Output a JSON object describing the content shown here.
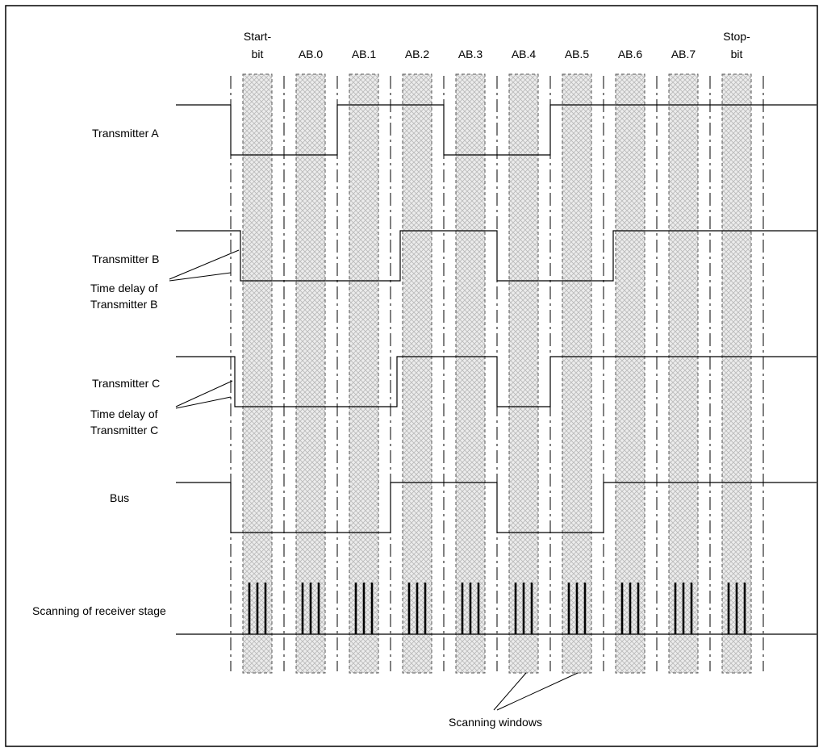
{
  "columns": [
    "Start-\nbit",
    "AB.0",
    "AB.1",
    "AB.2",
    "AB.3",
    "AB.4",
    "AB.5",
    "AB.6",
    "AB.7",
    "Stop-\nbit"
  ],
  "signals": [
    {
      "id": "transmitter-a",
      "label": "Transmitter A",
      "levels": [
        1,
        0,
        0,
        1,
        1,
        0,
        0,
        1,
        1,
        1,
        1
      ]
    },
    {
      "id": "transmitter-b",
      "label": "Transmitter B",
      "levels": [
        1,
        0,
        0,
        0,
        1,
        1,
        0,
        0,
        1,
        1,
        1
      ]
    },
    {
      "id": "transmitter-c",
      "label": "Transmitter C",
      "levels": [
        1,
        0,
        0,
        0,
        1,
        1,
        0,
        1,
        1,
        1,
        1
      ]
    },
    {
      "id": "bus",
      "label": "Bus",
      "levels": [
        1,
        0,
        0,
        0,
        1,
        1,
        0,
        0,
        1,
        1,
        1
      ]
    }
  ],
  "annotations": {
    "delay_b": [
      "Time delay of",
      "Transmitter B"
    ],
    "delay_c": [
      "Time delay of",
      "Transmitter C"
    ],
    "scanning_label": "Scanning of receiver stage",
    "windows_label": "Scanning windows"
  }
}
